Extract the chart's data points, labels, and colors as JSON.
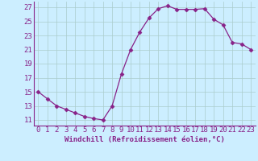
{
  "x": [
    0,
    1,
    2,
    3,
    4,
    5,
    6,
    7,
    8,
    9,
    10,
    11,
    12,
    13,
    14,
    15,
    16,
    17,
    18,
    19,
    20,
    21,
    22,
    23
  ],
  "y": [
    15,
    14,
    13,
    12.5,
    12,
    11.5,
    11.2,
    11,
    13,
    17.5,
    21,
    23.5,
    25.5,
    26.8,
    27.2,
    26.7,
    26.7,
    26.7,
    26.8,
    25.3,
    24.5,
    22,
    21.8,
    21
  ],
  "line_color": "#882288",
  "marker": "D",
  "marker_size": 2.5,
  "bg_color": "#cceeff",
  "grid_color": "#aacccc",
  "xlabel": "Windchill (Refroidissement éolien,°C)",
  "ylabel_ticks": [
    11,
    13,
    15,
    17,
    19,
    21,
    23,
    25,
    27
  ],
  "xlim": [
    -0.5,
    23.5
  ],
  "ylim": [
    10.2,
    27.8
  ],
  "xlabel_fontsize": 6.5,
  "tick_fontsize": 6.5,
  "xlabel_color": "#882288"
}
